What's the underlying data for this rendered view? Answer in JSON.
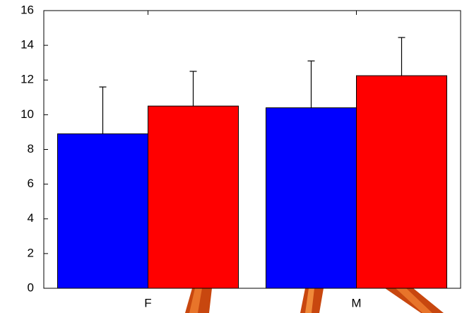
{
  "chart_data": {
    "type": "bar",
    "categories": [
      "F",
      "M"
    ],
    "series": [
      {
        "color": "#0000ff",
        "values": [
          8.9,
          10.4
        ],
        "errors": [
          2.7,
          2.7
        ]
      },
      {
        "color": "#ff0000",
        "values": [
          10.5,
          12.25
        ],
        "errors": [
          2.0,
          2.2
        ]
      }
    ],
    "ylim": [
      0,
      16
    ],
    "yticks": [
      0,
      2,
      4,
      6,
      8,
      10,
      12,
      14,
      16
    ],
    "grid": false
  }
}
